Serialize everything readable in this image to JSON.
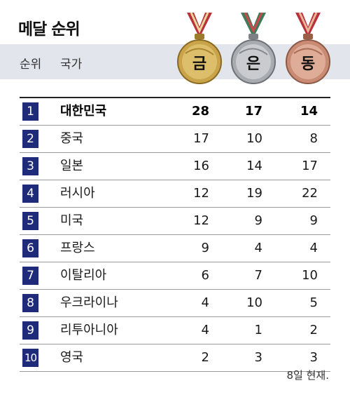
{
  "title": "메달 순위",
  "header": {
    "rank_label": "순위",
    "country_label": "국가"
  },
  "medals": {
    "gold": {
      "label": "금",
      "color": "#c9a44a",
      "ribbon": "#b8323b"
    },
    "silver": {
      "label": "은",
      "color": "#a8abb0",
      "ribbon": "#3f7a5a"
    },
    "bronze": {
      "label": "동",
      "color": "#c98b74",
      "ribbon": "#b8323b"
    }
  },
  "rank_box_color": "#1f2a7a",
  "rows": [
    {
      "rank": "1",
      "country": "대한민국",
      "gold": "28",
      "silver": "17",
      "bronze": "14"
    },
    {
      "rank": "2",
      "country": "중국",
      "gold": "17",
      "silver": "10",
      "bronze": "8"
    },
    {
      "rank": "3",
      "country": "일본",
      "gold": "16",
      "silver": "14",
      "bronze": "17"
    },
    {
      "rank": "4",
      "country": "러시아",
      "gold": "12",
      "silver": "19",
      "bronze": "22"
    },
    {
      "rank": "5",
      "country": "미국",
      "gold": "12",
      "silver": "9",
      "bronze": "9"
    },
    {
      "rank": "6",
      "country": "프랑스",
      "gold": "9",
      "silver": "4",
      "bronze": "4"
    },
    {
      "rank": "7",
      "country": "이탈리아",
      "gold": "6",
      "silver": "7",
      "bronze": "10"
    },
    {
      "rank": "8",
      "country": "우크라이나",
      "gold": "4",
      "silver": "10",
      "bronze": "5"
    },
    {
      "rank": "9",
      "country": "리투아니아",
      "gold": "4",
      "silver": "1",
      "bronze": "2"
    },
    {
      "rank": "10",
      "country": "영국",
      "gold": "2",
      "silver": "3",
      "bronze": "3"
    }
  ],
  "footnote": "8일 현재."
}
